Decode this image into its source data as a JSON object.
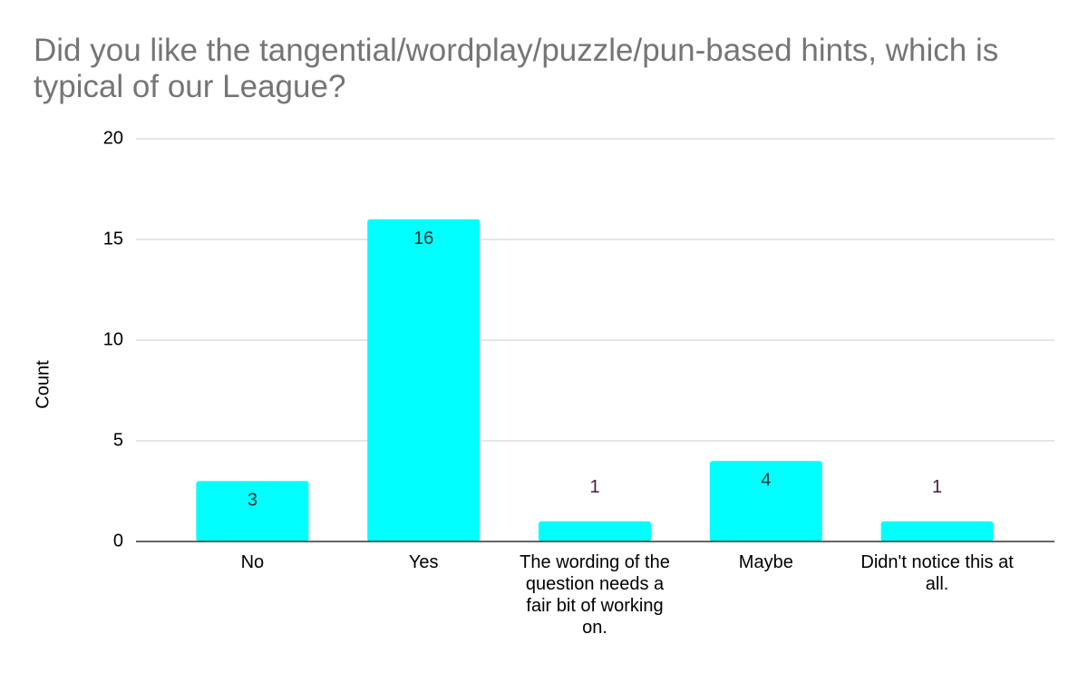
{
  "chart_data": {
    "type": "bar",
    "title": "Did you like the tangential/wordplay/puzzle/pun-based hints, which is typical of our League?",
    "y_label": "Count",
    "categories": [
      "No",
      "Yes",
      "The wording of the question needs a fair bit of working on.",
      "Maybe",
      "Didn't notice this at all."
    ],
    "values": [
      3,
      16,
      1,
      4,
      1
    ],
    "color": "#00ffff",
    "ylim": [
      0,
      20
    ],
    "yticks": [
      0,
      5,
      10,
      15,
      20
    ],
    "grid": true
  }
}
